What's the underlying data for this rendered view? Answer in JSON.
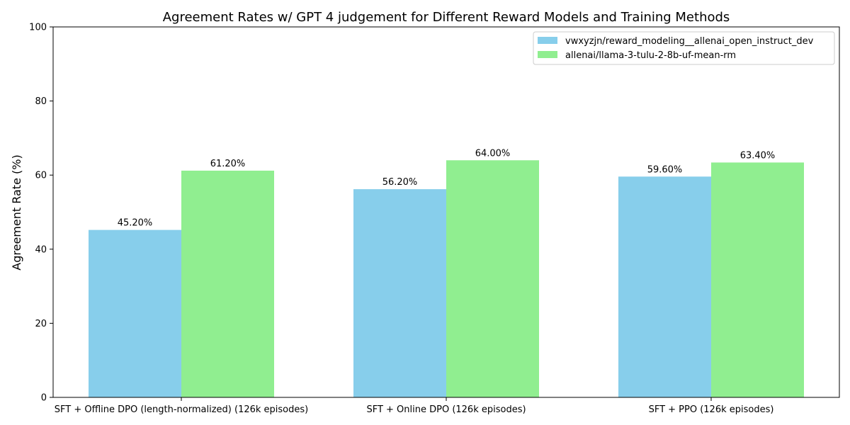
{
  "chart_data": {
    "type": "bar",
    "title": "Agreement Rates w/ GPT 4 judgement for Different Reward Models and Training Methods",
    "xlabel": "",
    "ylabel": "Agreement Rate (%)",
    "ylim": [
      0,
      100
    ],
    "yticks": [
      0,
      20,
      40,
      60,
      80,
      100
    ],
    "categories": [
      "SFT + Offline DPO (length-normalized) (126k episodes)",
      "SFT + Online DPO (126k episodes)",
      "SFT + PPO (126k episodes)"
    ],
    "series": [
      {
        "name": "vwxyzjn/reward_modeling__allenai_open_instruct_dev",
        "color": "#87ceeb",
        "values": [
          45.2,
          56.2,
          59.6
        ],
        "labels": [
          "45.20%",
          "56.20%",
          "59.60%"
        ]
      },
      {
        "name": "allenai/llama-3-tulu-2-8b-uf-mean-rm",
        "color": "#90ee90",
        "values": [
          61.2,
          64.0,
          63.4
        ],
        "labels": [
          "61.20%",
          "64.00%",
          "63.40%"
        ]
      }
    ],
    "grid": false,
    "legend_position": "top-right"
  }
}
